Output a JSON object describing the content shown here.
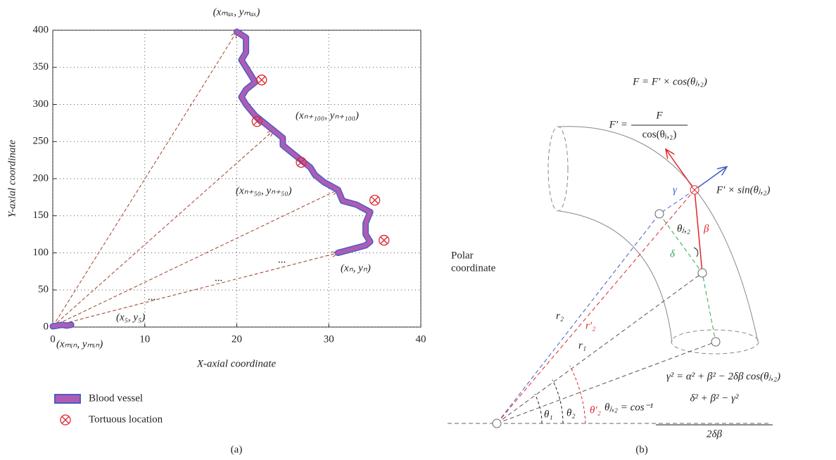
{
  "chart_data": {
    "type": "line",
    "xlabel": "X-axial coordinate",
    "ylabel": "Y-axial coordinate",
    "xlim": [
      0,
      40
    ],
    "xticks": [
      0,
      10,
      20,
      30,
      40
    ],
    "ylim": [
      0,
      400
    ],
    "yticks": [
      0,
      50,
      100,
      150,
      200,
      250,
      300,
      350,
      400
    ],
    "grid": true,
    "series": [
      {
        "name": "Blood vessel",
        "color": "#b05bb5",
        "edge_color": "#4a5fc1",
        "x": [
          31,
          32.5,
          34,
          34.5,
          34,
          34,
          34.5,
          33,
          31.5,
          31,
          29.5,
          28.5,
          28,
          27,
          26,
          25,
          25,
          24,
          23,
          22,
          21,
          20.5,
          21,
          22,
          21.5,
          21,
          20.5,
          21,
          21,
          21,
          20
        ],
        "values": [
          100,
          105,
          110,
          115,
          125,
          140,
          155,
          165,
          170,
          185,
          195,
          205,
          215,
          225,
          235,
          245,
          255,
          265,
          275,
          285,
          300,
          310,
          320,
          330,
          340,
          350,
          360,
          370,
          380,
          390,
          398
        ]
      },
      {
        "color": "#b05bb5",
        "edge_color": "#4a5fc1",
        "x": [
          0,
          0.5,
          1,
          1.5,
          2
        ],
        "values": [
          1,
          2,
          3,
          2,
          3
        ]
      },
      {
        "name": "Tortuous location",
        "color": "#e0262b",
        "marker": "circle-x",
        "x": [
          22.7,
          22.2,
          27,
          35,
          36
        ],
        "values": [
          333,
          277,
          222,
          171,
          117
        ]
      }
    ],
    "annotations": [
      "(xₘₐₓ, yₘₐₓ)",
      "(xₙ₊₁₀₀, yₙ₊₁₀₀)",
      "(xₙ₊₅₀, yₙ₊₅₀)",
      "(xₙ, yₙ)",
      "(x₅, y₅)",
      "(xₘᵢₙ, yₘᵢₙ)",
      "...",
      "...",
      "..."
    ],
    "caption": "(a)"
  },
  "diagram": {
    "labels": [
      "F = F′ × cos(θⱼ,₂)",
      "F′ =",
      "F",
      "cos(θⱼ,₂)",
      "F′ × sin(θⱼ,₂)",
      "γ",
      "β",
      "θⱼ,₂",
      "δ",
      "Polar",
      "coordinate",
      "r₂",
      "r′₂",
      "r₁",
      "θ₁",
      "θ₂",
      "θ′₂",
      "γ² = α² + β² − 2δβ cos(θⱼ,₂)",
      "θⱼ,₂ = cos⁻¹",
      "δ² + β² − γ²",
      "2δβ"
    ],
    "caption": "(b)"
  }
}
